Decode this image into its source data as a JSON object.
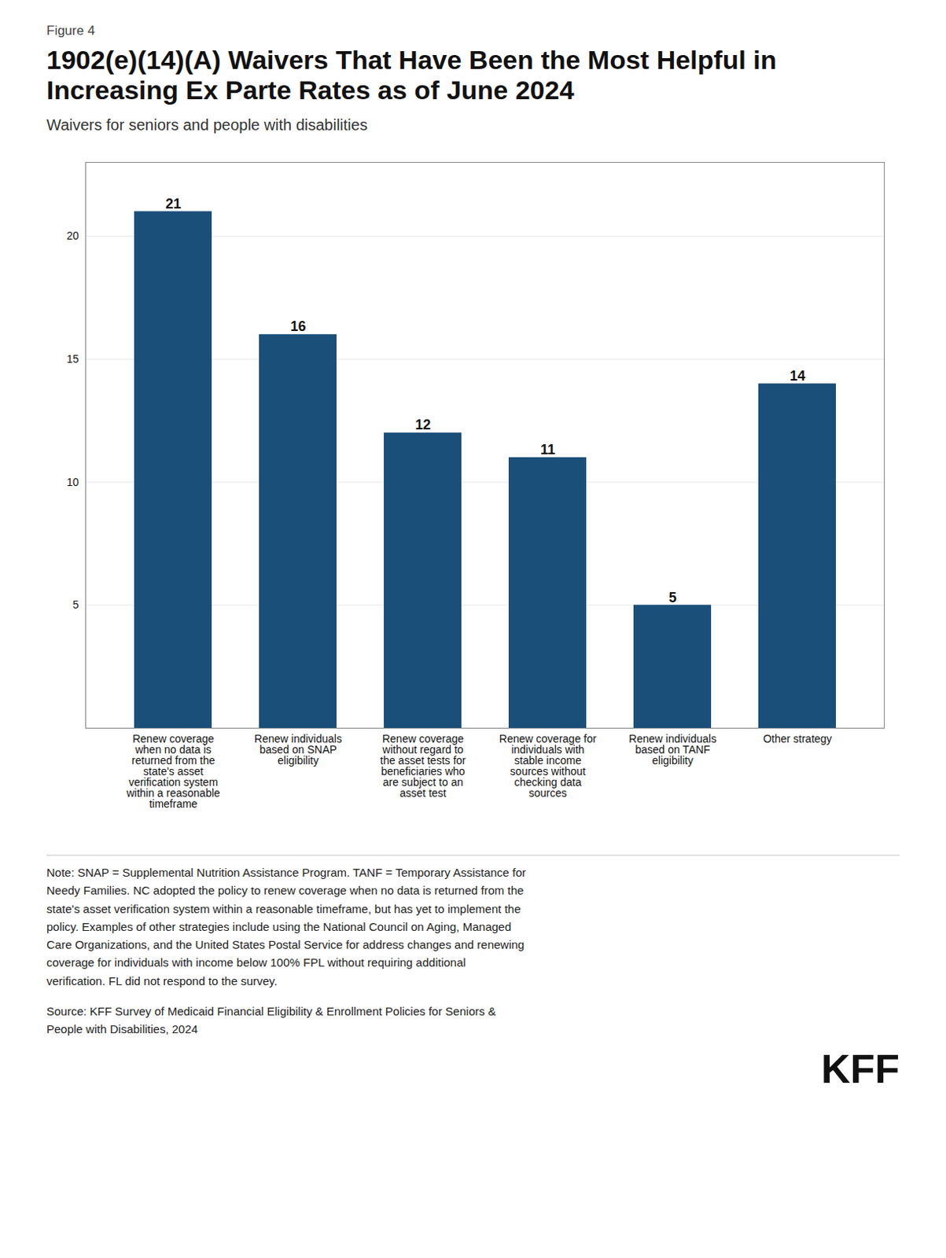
{
  "chart_data": {
    "type": "bar",
    "figure_label": "Figure 4",
    "title": "1902(e)(14)(A) Waivers That Have Been the Most Helpful in\nIncreasing Ex Parte Rates as of June 2024",
    "subtitle": "Waivers for seniors and people with disabilities",
    "categories": [
      "Renew coverage\nwhen no data is\nreturned from the\nstate's asset\nverification system\nwithin a reasonable\ntimeframe",
      "Renew individuals\nbased on SNAP\neligibility",
      "Renew coverage\nwithout regard to\nthe asset tests for\nbeneficiaries who\nare subject to an\nasset test",
      "Renew coverage for\nindividuals with\nstable income\nsources without\nchecking data\nsources",
      "Renew individuals\nbased on TANF\neligibility",
      "Other strategy"
    ],
    "values": [
      21,
      16,
      12,
      11,
      5,
      14
    ],
    "color": "#1a4f7a",
    "ylim": [
      0,
      23
    ],
    "yticks": [
      5,
      10,
      15,
      20
    ],
    "grid": true,
    "data_labels": true,
    "note": "Note: SNAP = Supplemental Nutrition Assistance Program. TANF = Temporary Assistance for\nNeedy Families. NC adopted the policy to renew coverage when no data is returned from the\nstate's asset verification system within a reasonable timeframe, but has yet to implement the\npolicy. Examples of other strategies include using the National Council on Aging, Managed\nCare Organizations, and the United States Postal Service for address changes and renewing\ncoverage for individuals with income below 100% FPL without requiring additional\nverification. FL did not respond to the survey.",
    "source": "Source: KFF Survey of Medicaid Financial Eligibility & Enrollment Policies for Seniors &\nPeople with Disabilities, 2024",
    "logo": "KFF"
  }
}
